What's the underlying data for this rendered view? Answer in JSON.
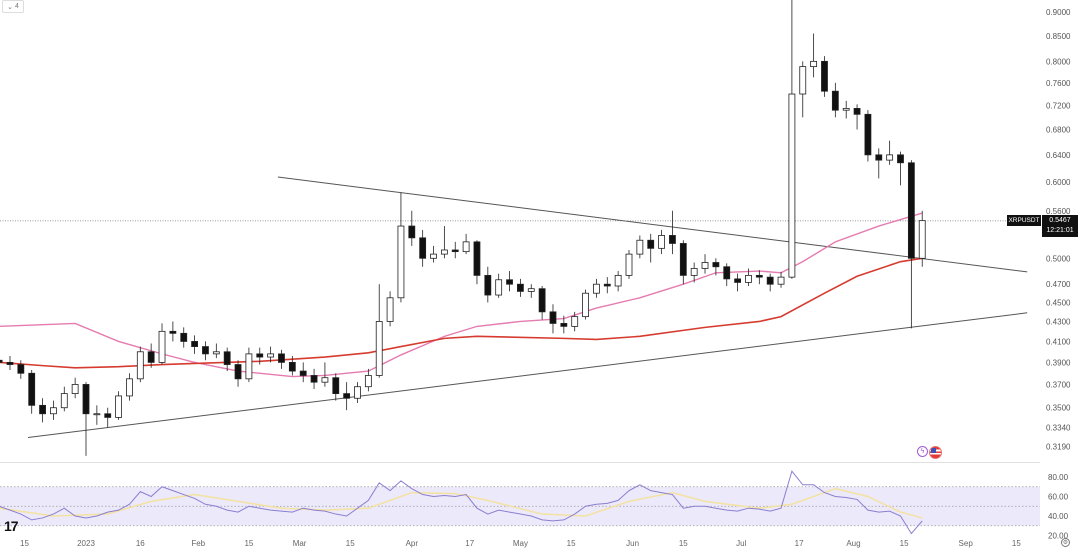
{
  "header": {
    "interval_badge": "4"
  },
  "symbol": {
    "name": "XRPUSDT",
    "last_price": "0.5467",
    "countdown": "12:21:01",
    "last_price_value": 0.5467
  },
  "colors": {
    "up_candle": "#ffffff",
    "down_candle": "#111111",
    "ma_fast": "#e57bb0",
    "ma_slow": "#d63b2f",
    "trendline": "#555555",
    "rsi_line": "#8b7fcf",
    "rsi_ma": "#f3e2a0",
    "rsi_band": "#ece9fb"
  },
  "icons": {
    "logo": "tradingview-logo",
    "event1": "lightning-icon",
    "event2": "us-flag-icon",
    "settings": "settings-icon"
  },
  "chart_data": {
    "type": "candlestick",
    "price_scale": "log",
    "grid": false,
    "timeframe_days": 3,
    "start_date": "2022-12-08",
    "price_ticks": [
      "0.9000",
      "0.8500",
      "0.8000",
      "0.7600",
      "0.7200",
      "0.6800",
      "0.6400",
      "0.6000",
      "0.5600",
      "0.5000",
      "0.4700",
      "0.4500",
      "0.4300",
      "0.4100",
      "0.3900",
      "0.3700",
      "0.3500",
      "0.3340",
      "0.3190"
    ],
    "time_ticks": [
      {
        "label": "15",
        "date": "2022-12-15"
      },
      {
        "label": "2023",
        "date": "2023-01-01"
      },
      {
        "label": "16",
        "date": "2023-01-16"
      },
      {
        "label": "Feb",
        "date": "2023-02-01"
      },
      {
        "label": "15",
        "date": "2023-02-15"
      },
      {
        "label": "Mar",
        "date": "2023-03-01"
      },
      {
        "label": "15",
        "date": "2023-03-15"
      },
      {
        "label": "Apr",
        "date": "2023-04-01"
      },
      {
        "label": "17",
        "date": "2023-04-17"
      },
      {
        "label": "May",
        "date": "2023-05-01"
      },
      {
        "label": "15",
        "date": "2023-05-15"
      },
      {
        "label": "Jun",
        "date": "2023-06-01"
      },
      {
        "label": "15",
        "date": "2023-06-15"
      },
      {
        "label": "Jul",
        "date": "2023-07-01"
      },
      {
        "label": "17",
        "date": "2023-07-17"
      },
      {
        "label": "Aug",
        "date": "2023-08-01"
      },
      {
        "label": "15",
        "date": "2023-08-15"
      },
      {
        "label": "Sep",
        "date": "2023-09-01"
      },
      {
        "label": "15",
        "date": "2023-09-15"
      }
    ],
    "ohlc": [
      [
        0.392,
        0.398,
        0.385,
        0.39
      ],
      [
        0.39,
        0.396,
        0.383,
        0.388
      ],
      [
        0.388,
        0.392,
        0.375,
        0.38
      ],
      [
        0.38,
        0.383,
        0.345,
        0.352
      ],
      [
        0.352,
        0.358,
        0.338,
        0.345
      ],
      [
        0.345,
        0.356,
        0.34,
        0.35
      ],
      [
        0.35,
        0.368,
        0.347,
        0.362
      ],
      [
        0.362,
        0.376,
        0.358,
        0.37
      ],
      [
        0.37,
        0.372,
        0.312,
        0.345
      ],
      [
        0.345,
        0.352,
        0.336,
        0.345
      ],
      [
        0.345,
        0.35,
        0.334,
        0.342
      ],
      [
        0.342,
        0.364,
        0.34,
        0.36
      ],
      [
        0.36,
        0.38,
        0.356,
        0.375
      ],
      [
        0.375,
        0.405,
        0.372,
        0.4
      ],
      [
        0.4,
        0.408,
        0.385,
        0.39
      ],
      [
        0.39,
        0.428,
        0.388,
        0.42
      ],
      [
        0.42,
        0.43,
        0.41,
        0.418
      ],
      [
        0.418,
        0.424,
        0.404,
        0.41
      ],
      [
        0.41,
        0.416,
        0.398,
        0.405
      ],
      [
        0.405,
        0.41,
        0.392,
        0.398
      ],
      [
        0.398,
        0.408,
        0.394,
        0.4
      ],
      [
        0.4,
        0.404,
        0.382,
        0.388
      ],
      [
        0.388,
        0.392,
        0.368,
        0.375
      ],
      [
        0.375,
        0.404,
        0.372,
        0.398
      ],
      [
        0.398,
        0.404,
        0.388,
        0.395
      ],
      [
        0.395,
        0.405,
        0.39,
        0.398
      ],
      [
        0.398,
        0.402,
        0.384,
        0.39
      ],
      [
        0.39,
        0.396,
        0.378,
        0.382
      ],
      [
        0.382,
        0.39,
        0.372,
        0.378
      ],
      [
        0.378,
        0.384,
        0.366,
        0.372
      ],
      [
        0.372,
        0.39,
        0.368,
        0.376
      ],
      [
        0.376,
        0.38,
        0.356,
        0.362
      ],
      [
        0.362,
        0.372,
        0.348,
        0.358
      ],
      [
        0.358,
        0.372,
        0.354,
        0.368
      ],
      [
        0.368,
        0.384,
        0.364,
        0.378
      ],
      [
        0.378,
        0.47,
        0.376,
        0.43
      ],
      [
        0.43,
        0.462,
        0.425,
        0.455
      ],
      [
        0.455,
        0.585,
        0.45,
        0.54
      ],
      [
        0.54,
        0.56,
        0.515,
        0.525
      ],
      [
        0.525,
        0.535,
        0.49,
        0.5
      ],
      [
        0.5,
        0.515,
        0.495,
        0.505
      ],
      [
        0.505,
        0.54,
        0.5,
        0.51
      ],
      [
        0.51,
        0.52,
        0.5,
        0.508
      ],
      [
        0.508,
        0.53,
        0.505,
        0.52
      ],
      [
        0.52,
        0.522,
        0.47,
        0.48
      ],
      [
        0.48,
        0.49,
        0.45,
        0.458
      ],
      [
        0.458,
        0.482,
        0.455,
        0.475
      ],
      [
        0.475,
        0.485,
        0.462,
        0.47
      ],
      [
        0.47,
        0.476,
        0.456,
        0.462
      ],
      [
        0.462,
        0.47,
        0.455,
        0.465
      ],
      [
        0.465,
        0.468,
        0.432,
        0.44
      ],
      [
        0.44,
        0.448,
        0.418,
        0.428
      ],
      [
        0.428,
        0.436,
        0.418,
        0.425
      ],
      [
        0.425,
        0.44,
        0.42,
        0.435
      ],
      [
        0.435,
        0.464,
        0.432,
        0.46
      ],
      [
        0.46,
        0.476,
        0.455,
        0.47
      ],
      [
        0.47,
        0.478,
        0.46,
        0.468
      ],
      [
        0.468,
        0.485,
        0.462,
        0.48
      ],
      [
        0.48,
        0.51,
        0.476,
        0.505
      ],
      [
        0.505,
        0.528,
        0.5,
        0.522
      ],
      [
        0.522,
        0.53,
        0.495,
        0.512
      ],
      [
        0.512,
        0.535,
        0.505,
        0.528
      ],
      [
        0.528,
        0.56,
        0.505,
        0.518
      ],
      [
        0.518,
        0.522,
        0.47,
        0.48
      ],
      [
        0.48,
        0.495,
        0.472,
        0.488
      ],
      [
        0.488,
        0.505,
        0.482,
        0.495
      ],
      [
        0.495,
        0.5,
        0.48,
        0.49
      ],
      [
        0.49,
        0.494,
        0.468,
        0.476
      ],
      [
        0.476,
        0.482,
        0.462,
        0.472
      ],
      [
        0.472,
        0.488,
        0.468,
        0.48
      ],
      [
        0.48,
        0.486,
        0.47,
        0.478
      ],
      [
        0.478,
        0.482,
        0.462,
        0.47
      ],
      [
        0.47,
        0.484,
        0.466,
        0.478
      ],
      [
        0.478,
        0.935,
        0.476,
        0.74
      ],
      [
        0.74,
        0.8,
        0.7,
        0.79
      ],
      [
        0.79,
        0.855,
        0.77,
        0.8
      ],
      [
        0.8,
        0.81,
        0.735,
        0.745
      ],
      [
        0.745,
        0.76,
        0.7,
        0.712
      ],
      [
        0.712,
        0.728,
        0.698,
        0.715
      ],
      [
        0.715,
        0.722,
        0.68,
        0.705
      ],
      [
        0.705,
        0.712,
        0.63,
        0.64
      ],
      [
        0.64,
        0.65,
        0.605,
        0.632
      ],
      [
        0.632,
        0.662,
        0.625,
        0.64
      ],
      [
        0.64,
        0.645,
        0.595,
        0.628
      ],
      [
        0.628,
        0.632,
        0.423,
        0.5
      ],
      [
        0.5,
        0.56,
        0.49,
        0.547
      ]
    ],
    "ma_fast": [
      [
        "2022-12-08",
        0.425
      ],
      [
        "2022-12-29",
        0.428
      ],
      [
        "2023-01-10",
        0.41
      ],
      [
        "2023-01-22",
        0.398
      ],
      [
        "2023-01-31",
        0.39
      ],
      [
        "2023-02-12",
        0.382
      ],
      [
        "2023-02-27",
        0.377
      ],
      [
        "2023-03-08",
        0.378
      ],
      [
        "2023-03-20",
        0.382
      ],
      [
        "2023-03-29",
        0.397
      ],
      [
        "2023-04-10",
        0.415
      ],
      [
        "2023-04-19",
        0.425
      ],
      [
        "2023-05-01",
        0.43
      ],
      [
        "2023-05-13",
        0.433
      ],
      [
        "2023-05-22",
        0.444
      ],
      [
        "2023-06-03",
        0.455
      ],
      [
        "2023-06-15",
        0.47
      ],
      [
        "2023-06-24",
        0.483
      ],
      [
        "2023-07-06",
        0.485
      ],
      [
        "2023-07-12",
        0.483
      ],
      [
        "2023-07-18",
        0.496
      ],
      [
        "2023-07-27",
        0.52
      ],
      [
        "2023-08-08",
        0.54
      ],
      [
        "2023-08-20",
        0.557
      ]
    ],
    "ma_slow": [
      [
        "2022-12-08",
        0.39
      ],
      [
        "2022-12-20",
        0.387
      ],
      [
        "2022-12-29",
        0.385
      ],
      [
        "2023-01-10",
        0.386
      ],
      [
        "2023-01-22",
        0.388
      ],
      [
        "2023-01-31",
        0.389
      ],
      [
        "2023-02-18",
        0.391
      ],
      [
        "2023-03-08",
        0.395
      ],
      [
        "2023-03-20",
        0.399
      ],
      [
        "2023-03-29",
        0.405
      ],
      [
        "2023-04-10",
        0.413
      ],
      [
        "2023-04-19",
        0.415
      ],
      [
        "2023-05-13",
        0.413
      ],
      [
        "2023-05-22",
        0.412
      ],
      [
        "2023-06-03",
        0.415
      ],
      [
        "2023-06-21",
        0.424
      ],
      [
        "2023-07-06",
        0.43
      ],
      [
        "2023-07-12",
        0.435
      ],
      [
        "2023-07-24",
        0.46
      ],
      [
        "2023-08-02",
        0.479
      ],
      [
        "2023-08-14",
        0.496
      ],
      [
        "2023-08-20",
        0.5
      ]
    ],
    "trendlines": [
      {
        "from": [
          "2023-02-23",
          0.607
        ],
        "to": [
          "2023-09-18",
          0.484
        ]
      },
      {
        "from": [
          "2022-12-16",
          0.326
        ],
        "to": [
          "2023-09-18",
          0.439
        ]
      }
    ],
    "rsi": {
      "ticks": [
        "80.00",
        "60.00",
        "40.00",
        "20.00"
      ],
      "upper_band": 70,
      "mid": 50,
      "lower_band": 30,
      "values": [
        50,
        46,
        42,
        36,
        38,
        42,
        48,
        40,
        38,
        40,
        44,
        46,
        52,
        65,
        60,
        70,
        66,
        62,
        58,
        52,
        50,
        46,
        44,
        50,
        48,
        46,
        45,
        44,
        48,
        46,
        45,
        42,
        40,
        48,
        56,
        74,
        66,
        76,
        68,
        62,
        60,
        61,
        60,
        62,
        48,
        42,
        46,
        44,
        42,
        40,
        36,
        35,
        36,
        42,
        50,
        52,
        53,
        56,
        66,
        72,
        66,
        64,
        62,
        48,
        50,
        50,
        48,
        46,
        45,
        48,
        47,
        45,
        48,
        86,
        72,
        72,
        64,
        60,
        59,
        57,
        46,
        44,
        45,
        40,
        22,
        35
      ],
      "ma": [
        [
          "2022-12-08",
          48
        ],
        [
          "2022-12-23",
          40
        ],
        [
          "2023-01-07",
          42
        ],
        [
          "2023-01-19",
          55
        ],
        [
          "2023-01-31",
          62
        ],
        [
          "2023-02-12",
          55
        ],
        [
          "2023-02-24",
          48
        ],
        [
          "2023-03-08",
          46
        ],
        [
          "2023-03-20",
          48
        ],
        [
          "2023-04-01",
          64
        ],
        [
          "2023-04-13",
          63
        ],
        [
          "2023-04-22",
          56
        ],
        [
          "2023-05-07",
          42
        ],
        [
          "2023-05-19",
          40
        ],
        [
          "2023-05-31",
          55
        ],
        [
          "2023-06-12",
          64
        ],
        [
          "2023-06-21",
          55
        ],
        [
          "2023-07-06",
          48
        ],
        [
          "2023-07-15",
          52
        ],
        [
          "2023-07-27",
          68
        ],
        [
          "2023-08-05",
          60
        ],
        [
          "2023-08-14",
          44
        ],
        [
          "2023-08-20",
          38
        ]
      ]
    }
  }
}
